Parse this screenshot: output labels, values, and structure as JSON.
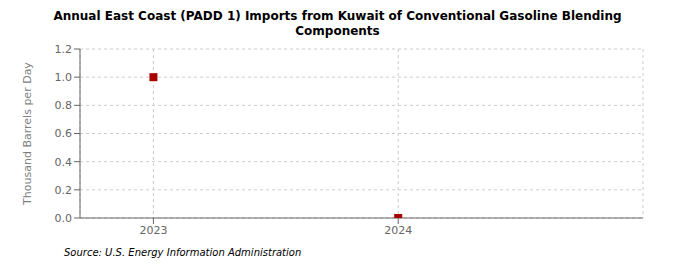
{
  "chart_data": {
    "type": "scatter",
    "title": "Annual East Coast (PADD 1) Imports from Kuwait of Conventional Gasoline Blending\nComponents",
    "y_label": "Thousand Barrels per Day",
    "annotations": [
      "Source: U.S. Energy Information Administration"
    ],
    "x": [
      2023,
      2024
    ],
    "values": [
      1.0,
      0.0
    ],
    "color": "#aa0000",
    "marker": "square",
    "xlim": [
      2022.7,
      2025.0
    ],
    "xticks": [
      2023,
      2024
    ],
    "ylim": [
      0.0,
      1.2
    ],
    "yticks": [
      {
        "value": 0.0,
        "label": "0.0"
      },
      0.2,
      0.4,
      0.6,
      0.8,
      {
        "value": 1.0,
        "label": "1.0"
      },
      1.2
    ],
    "grid": true
  }
}
